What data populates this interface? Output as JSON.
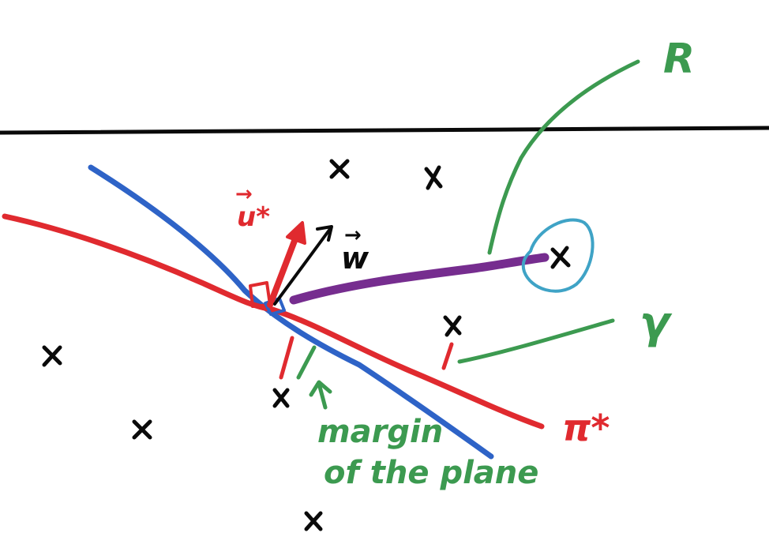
{
  "labels": {
    "R": "R",
    "gamma": "γ",
    "u_star": "u*",
    "u_arrow": "→",
    "w": "w",
    "w_arrow": "→",
    "pi_star": "π*",
    "margin_line1": "margin",
    "margin_line2": "of the plane"
  },
  "colors": {
    "black": "#0a0a0a",
    "red": "#e02a2f",
    "blue": "#2e63c7",
    "green": "#3c9a50",
    "purple": "#6a1b86",
    "cyan": "#3fa3c6"
  }
}
